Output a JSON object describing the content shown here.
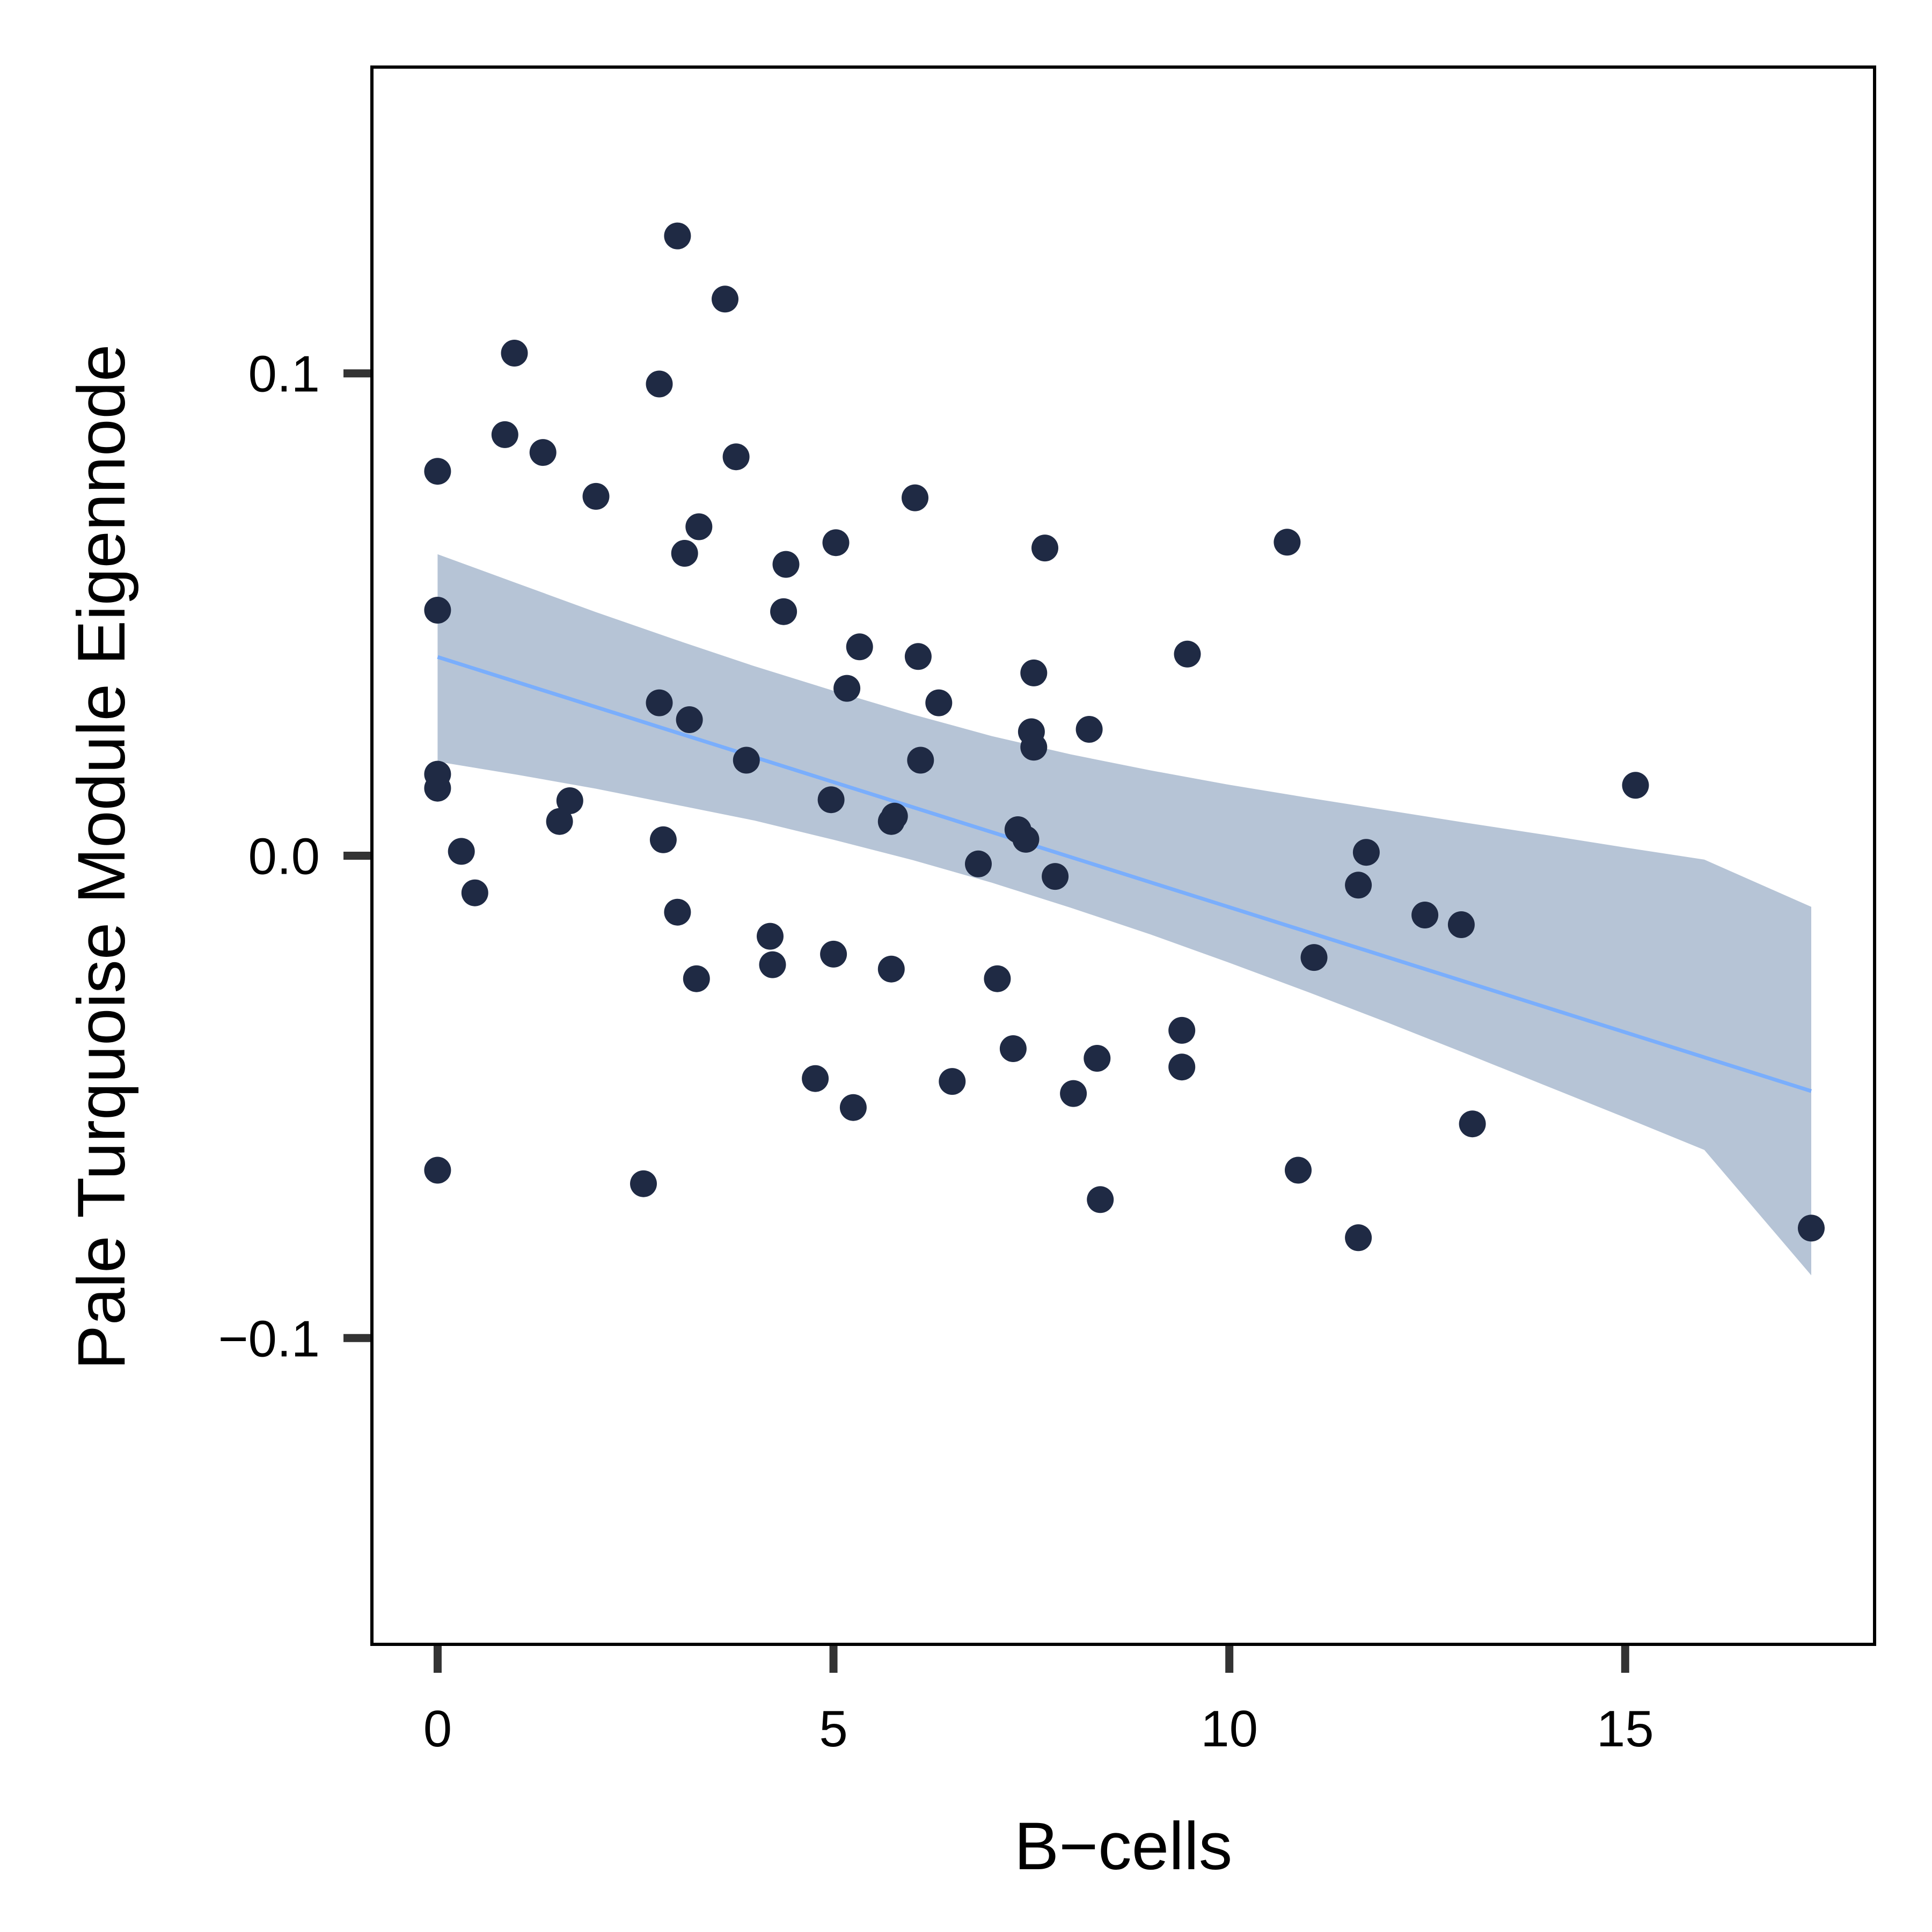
{
  "chart_data": {
    "type": "scatter",
    "title": "",
    "xlabel": "B−cells",
    "ylabel": "Pale Turquoise Module Eigennode",
    "xlim": [
      -0.83,
      18.15
    ],
    "ylim": [
      -0.1635,
      0.1635
    ],
    "x_ticks": [
      {
        "value": 0,
        "label": "0"
      },
      {
        "value": 5,
        "label": "5"
      },
      {
        "value": 10,
        "label": "10"
      },
      {
        "value": 15,
        "label": "15"
      }
    ],
    "y_ticks": [
      {
        "value": -0.1,
        "label": "−0.1"
      },
      {
        "value": 0.0,
        "label": "0.0"
      },
      {
        "value": 0.1,
        "label": "0.1"
      }
    ],
    "grid": false,
    "legend": "none",
    "colors": {
      "points": "#1f2a44",
      "fit_line": "#7aaefc",
      "confidence_band": "#b6c4d6",
      "axis": "#000000",
      "ticks": "#333333"
    },
    "fit": {
      "x": [
        0,
        17.35
      ],
      "y": [
        0.0412,
        -0.0488
      ]
    },
    "confidence_band": {
      "x": [
        0,
        1,
        2,
        3,
        4,
        5,
        6,
        7,
        8,
        9,
        10,
        11,
        12,
        13,
        14,
        15,
        16,
        17.35
      ],
      "upper": [
        0.0625,
        0.0565,
        0.0505,
        0.0448,
        0.0393,
        0.0342,
        0.0293,
        0.0248,
        0.021,
        0.0177,
        0.0147,
        0.012,
        0.0094,
        0.0068,
        0.0043,
        0.0017,
        -0.0008,
        -0.0106
      ],
      "lower": [
        0.0195,
        0.0168,
        0.0139,
        0.0106,
        0.0073,
        0.0033,
        -0.0009,
        -0.0056,
        -0.0108,
        -0.0163,
        -0.0222,
        -0.0283,
        -0.0346,
        -0.0411,
        -0.0477,
        -0.0543,
        -0.061,
        -0.087
      ]
    },
    "points": [
      {
        "x": 0.0,
        "y": 0.0797
      },
      {
        "x": 0.0,
        "y": 0.0509
      },
      {
        "x": 0.0,
        "y": 0.0169
      },
      {
        "x": 0.0,
        "y": 0.014
      },
      {
        "x": 0.0,
        "y": -0.0652
      },
      {
        "x": 0.3,
        "y": 0.0009
      },
      {
        "x": 0.47,
        "y": -0.0077
      },
      {
        "x": 0.85,
        "y": 0.0873
      },
      {
        "x": 0.97,
        "y": 0.1042
      },
      {
        "x": 1.33,
        "y": 0.0836
      },
      {
        "x": 1.54,
        "y": 0.0071
      },
      {
        "x": 1.67,
        "y": 0.0114
      },
      {
        "x": 2.0,
        "y": 0.0745
      },
      {
        "x": 2.6,
        "y": -0.068
      },
      {
        "x": 2.8,
        "y": 0.0978
      },
      {
        "x": 2.8,
        "y": 0.0317
      },
      {
        "x": 2.85,
        "y": 0.0033
      },
      {
        "x": 3.03,
        "y": 0.1285
      },
      {
        "x": 3.03,
        "y": -0.0117
      },
      {
        "x": 3.12,
        "y": 0.0627
      },
      {
        "x": 3.18,
        "y": 0.0282
      },
      {
        "x": 3.27,
        "y": -0.0255
      },
      {
        "x": 3.3,
        "y": 0.0682
      },
      {
        "x": 3.63,
        "y": 0.1154
      },
      {
        "x": 3.77,
        "y": 0.0827
      },
      {
        "x": 3.9,
        "y": 0.0198
      },
      {
        "x": 4.2,
        "y": -0.0167
      },
      {
        "x": 4.23,
        "y": -0.0226
      },
      {
        "x": 4.37,
        "y": 0.0506
      },
      {
        "x": 4.4,
        "y": 0.0604
      },
      {
        "x": 4.77,
        "y": -0.0462
      },
      {
        "x": 4.97,
        "y": 0.0116
      },
      {
        "x": 5.0,
        "y": -0.0204
      },
      {
        "x": 5.03,
        "y": 0.0649
      },
      {
        "x": 5.17,
        "y": 0.0347
      },
      {
        "x": 5.25,
        "y": -0.0522
      },
      {
        "x": 5.33,
        "y": 0.0433
      },
      {
        "x": 5.73,
        "y": -0.0235
      },
      {
        "x": 5.73,
        "y": 0.0071
      },
      {
        "x": 5.77,
        "y": 0.0082
      },
      {
        "x": 6.03,
        "y": 0.0742
      },
      {
        "x": 6.07,
        "y": 0.0413
      },
      {
        "x": 6.1,
        "y": 0.0198
      },
      {
        "x": 6.33,
        "y": 0.0317
      },
      {
        "x": 6.5,
        "y": -0.0468
      },
      {
        "x": 6.83,
        "y": -0.0017
      },
      {
        "x": 7.07,
        "y": -0.0255
      },
      {
        "x": 7.27,
        "y": -0.04
      },
      {
        "x": 7.33,
        "y": 0.0054
      },
      {
        "x": 7.43,
        "y": 0.0034
      },
      {
        "x": 7.5,
        "y": 0.0257
      },
      {
        "x": 7.53,
        "y": 0.0379
      },
      {
        "x": 7.53,
        "y": 0.0225
      },
      {
        "x": 7.67,
        "y": 0.0638
      },
      {
        "x": 7.8,
        "y": -0.0043
      },
      {
        "x": 8.03,
        "y": -0.0493
      },
      {
        "x": 8.23,
        "y": 0.0262
      },
      {
        "x": 8.33,
        "y": -0.042
      },
      {
        "x": 8.37,
        "y": -0.0713
      },
      {
        "x": 9.4,
        "y": -0.0362
      },
      {
        "x": 9.4,
        "y": -0.0438
      },
      {
        "x": 9.47,
        "y": 0.0418
      },
      {
        "x": 10.73,
        "y": 0.065
      },
      {
        "x": 10.87,
        "y": -0.0652
      },
      {
        "x": 11.07,
        "y": -0.0211
      },
      {
        "x": 11.63,
        "y": -0.0061
      },
      {
        "x": 11.63,
        "y": -0.0792
      },
      {
        "x": 11.73,
        "y": 0.0007
      },
      {
        "x": 12.47,
        "y": -0.0123
      },
      {
        "x": 12.93,
        "y": -0.0143
      },
      {
        "x": 13.07,
        "y": -0.0556
      },
      {
        "x": 15.13,
        "y": 0.0146
      },
      {
        "x": 17.35,
        "y": -0.0772
      }
    ]
  }
}
